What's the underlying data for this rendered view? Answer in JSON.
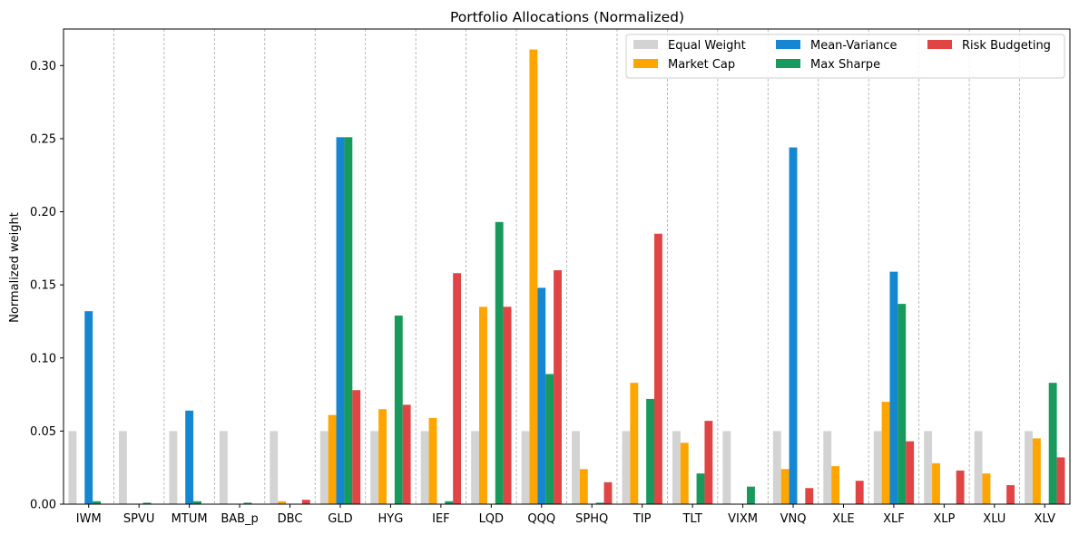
{
  "chart_data": {
    "type": "bar",
    "title": "Portfolio Allocations (Normalized)",
    "xlabel": "",
    "ylabel": "Normalized weight",
    "ylim": [
      0,
      0.325
    ],
    "yticks": [
      0.0,
      0.05,
      0.1,
      0.15,
      0.2,
      0.25,
      0.3
    ],
    "ytick_labels": [
      "0.00",
      "0.05",
      "0.10",
      "0.15",
      "0.20",
      "0.25",
      "0.30"
    ],
    "grid": "vertical dashed lines between categories",
    "legend_position": "top-right",
    "categories": [
      "IWM",
      "SPVU",
      "MTUM",
      "BAB_p",
      "DBC",
      "GLD",
      "HYG",
      "IEF",
      "LQD",
      "QQQ",
      "SPHQ",
      "TIP",
      "TLT",
      "VIXM",
      "VNQ",
      "XLE",
      "XLF",
      "XLP",
      "XLU",
      "XLV"
    ],
    "series": [
      {
        "name": "Equal Weight",
        "color": "#d3d3d3",
        "values": [
          0.05,
          0.05,
          0.05,
          0.05,
          0.05,
          0.05,
          0.05,
          0.05,
          0.05,
          0.05,
          0.05,
          0.05,
          0.05,
          0.05,
          0.05,
          0.05,
          0.05,
          0.05,
          0.05,
          0.05
        ]
      },
      {
        "name": "Market Cap",
        "color": "#ffa500",
        "values": [
          0,
          0,
          0,
          0,
          0.002,
          0.061,
          0.065,
          0.059,
          0.135,
          0.311,
          0.024,
          0.083,
          0.042,
          0,
          0.024,
          0.026,
          0.07,
          0.028,
          0.021,
          0.045
        ]
      },
      {
        "name": "Mean-Variance",
        "color": "#1587d0",
        "values": [
          0.132,
          0,
          0.064,
          0,
          0,
          0.251,
          0,
          0,
          0,
          0.148,
          0,
          0,
          0,
          0,
          0.244,
          0,
          0.159,
          0,
          0,
          0
        ]
      },
      {
        "name": "Max Sharpe",
        "color": "#189a5c",
        "values": [
          0.002,
          0.001,
          0.002,
          0.001,
          0,
          0.251,
          0.129,
          0.002,
          0.193,
          0.089,
          0.001,
          0.072,
          0.021,
          0.012,
          0,
          0,
          0.137,
          0,
          0,
          0.083
        ]
      },
      {
        "name": "Risk Budgeting",
        "color": "#e04444",
        "values": [
          0,
          0,
          0,
          0,
          0.003,
          0.078,
          0.068,
          0.158,
          0.135,
          0.16,
          0.015,
          0.185,
          0.057,
          0,
          0.011,
          0.016,
          0.043,
          0.023,
          0.013,
          0.032
        ]
      }
    ]
  }
}
